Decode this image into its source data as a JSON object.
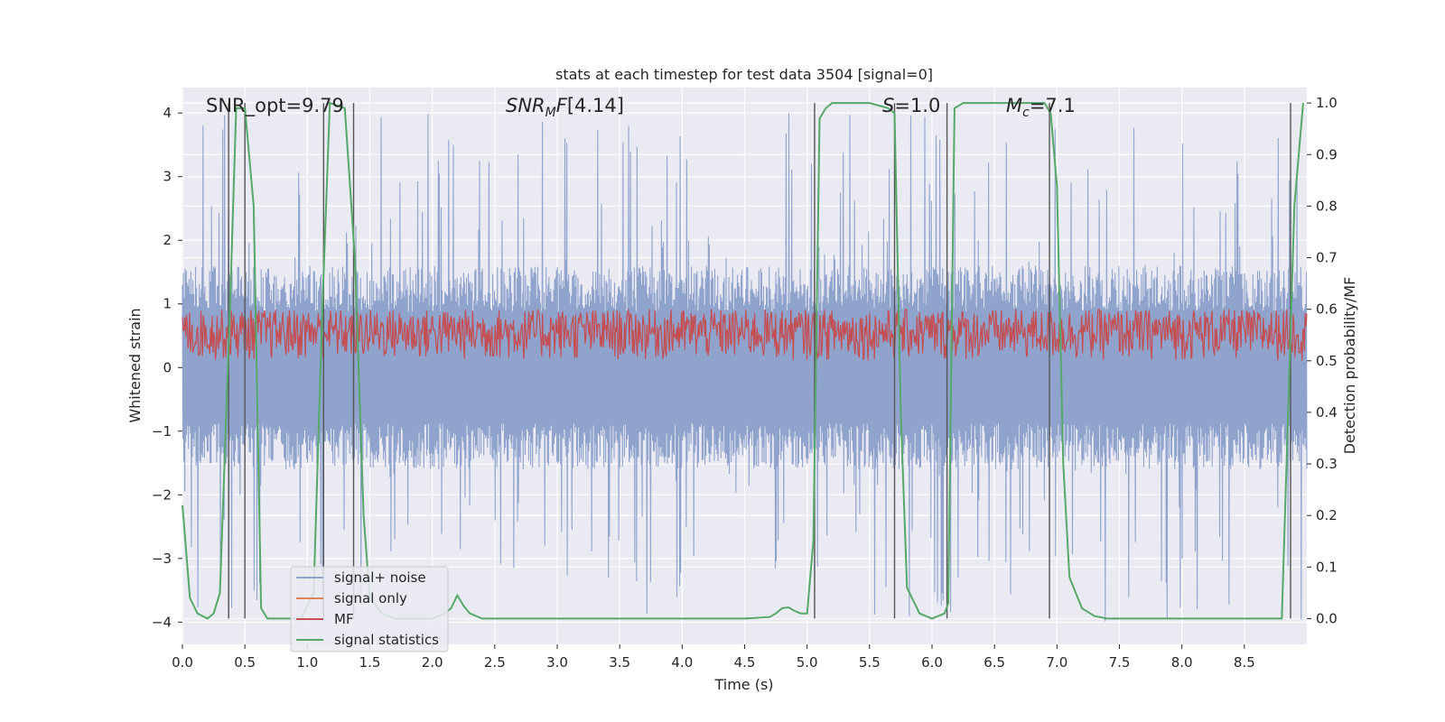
{
  "chart_data": {
    "type": "line",
    "title": "stats at each timestep for test data 3504 [signal=0]",
    "xlabel": "Time (s)",
    "ylabel": "Whitened strain",
    "ylabel_right": "Detection probability/MF",
    "xlim": [
      0.0,
      9.0
    ],
    "ylim": [
      -4.35,
      4.4
    ],
    "ylim_right": [
      -0.05,
      1.03
    ],
    "x_ticks": [
      0.0,
      0.5,
      1.0,
      1.5,
      2.0,
      2.5,
      3.0,
      3.5,
      4.0,
      4.5,
      5.0,
      5.5,
      6.0,
      6.5,
      7.0,
      7.5,
      8.0,
      8.5
    ],
    "x_tick_labels": [
      "0.0",
      "0.5",
      "1.0",
      "1.5",
      "2.0",
      "2.5",
      "3.0",
      "3.5",
      "4.0",
      "4.5",
      "5.0",
      "5.5",
      "6.0",
      "6.5",
      "7.0",
      "7.5",
      "8.0",
      "8.5"
    ],
    "y_ticks": [
      -4,
      -3,
      -2,
      -1,
      0,
      1,
      2,
      3,
      4
    ],
    "y_tick_labels": [
      "−4",
      "−3",
      "−2",
      "−1",
      "0",
      "1",
      "2",
      "3",
      "4"
    ],
    "y_right_ticks": [
      0.0,
      0.1,
      0.2,
      0.3,
      0.4,
      0.5,
      0.6,
      0.7,
      0.8,
      0.9,
      1.0
    ],
    "y_right_tick_labels": [
      "0.0",
      "0.1",
      "0.2",
      "0.3",
      "0.4",
      "0.5",
      "0.6",
      "0.7",
      "0.8",
      "0.9",
      "1.0"
    ],
    "grid": true,
    "legend_position": "lower-left",
    "annotations": {
      "snr_opt": "SNR_opt=9.79",
      "snr_mf": "[4.14]",
      "s": "=1.0",
      "mc": "=7.1"
    },
    "annotation_labels": {
      "snr_prefix": "SNR",
      "snr_sub": "M",
      "snr_f": "F",
      "s_symbol": "S",
      "mc_symbol": "M",
      "mc_sub": "c"
    },
    "series": [
      {
        "name": "signal+ noise",
        "color": "#8fa3cd",
        "axis": "left",
        "style": "noise",
        "amplitude_typical": 1.6,
        "amplitude_peak": 4.0
      },
      {
        "name": "signal only",
        "color": "#dd8452",
        "axis": "left",
        "style": "flat",
        "values": []
      },
      {
        "name": "MF",
        "color": "#c44e52",
        "axis": "right",
        "style": "band",
        "range": [
          0.5,
          0.6
        ]
      },
      {
        "name": "signal statistics",
        "color": "#55a868",
        "axis": "right",
        "x": [
          0.0,
          0.06,
          0.12,
          0.2,
          0.25,
          0.3,
          0.38,
          0.43,
          0.5,
          0.57,
          0.63,
          0.68,
          0.8,
          0.95,
          1.05,
          1.12,
          1.18,
          1.3,
          1.38,
          1.45,
          1.5,
          1.6,
          1.7,
          1.8,
          2.0,
          2.1,
          2.15,
          2.2,
          2.25,
          2.3,
          2.4,
          2.6,
          3.0,
          3.5,
          4.0,
          4.5,
          4.7,
          4.75,
          4.8,
          4.85,
          4.9,
          4.95,
          5.0,
          5.05,
          5.1,
          5.15,
          5.2,
          5.3,
          5.5,
          5.65,
          5.7,
          5.75,
          5.8,
          5.9,
          6.0,
          6.1,
          6.13,
          6.18,
          6.25,
          6.5,
          6.9,
          6.95,
          7.0,
          7.05,
          7.1,
          7.2,
          7.3,
          7.4,
          7.6,
          8.0,
          8.5,
          8.8,
          8.85,
          8.9,
          8.97
        ],
        "values": [
          0.22,
          0.04,
          0.01,
          0.0,
          0.01,
          0.05,
          0.6,
          0.99,
          0.99,
          0.8,
          0.02,
          0.0,
          0.0,
          0.0,
          0.05,
          0.6,
          1.0,
          0.99,
          0.7,
          0.2,
          0.04,
          0.01,
          0.0,
          0.0,
          0.0,
          0.01,
          0.02,
          0.045,
          0.025,
          0.01,
          0.0,
          0.0,
          0.0,
          0.0,
          0.0,
          0.0,
          0.003,
          0.01,
          0.02,
          0.022,
          0.015,
          0.01,
          0.01,
          0.15,
          0.97,
          0.99,
          1.0,
          1.0,
          1.0,
          0.99,
          0.98,
          0.4,
          0.06,
          0.01,
          0.0,
          0.01,
          0.03,
          0.99,
          1.0,
          1.0,
          1.0,
          0.98,
          0.84,
          0.3,
          0.08,
          0.02,
          0.005,
          0.0,
          0.0,
          0.0,
          0.0,
          0.0,
          0.4,
          0.8,
          1.0
        ]
      }
    ],
    "vertical_markers": [
      0.37,
      0.5,
      1.13,
      1.37,
      5.06,
      5.7,
      6.12,
      6.94,
      8.87
    ]
  }
}
